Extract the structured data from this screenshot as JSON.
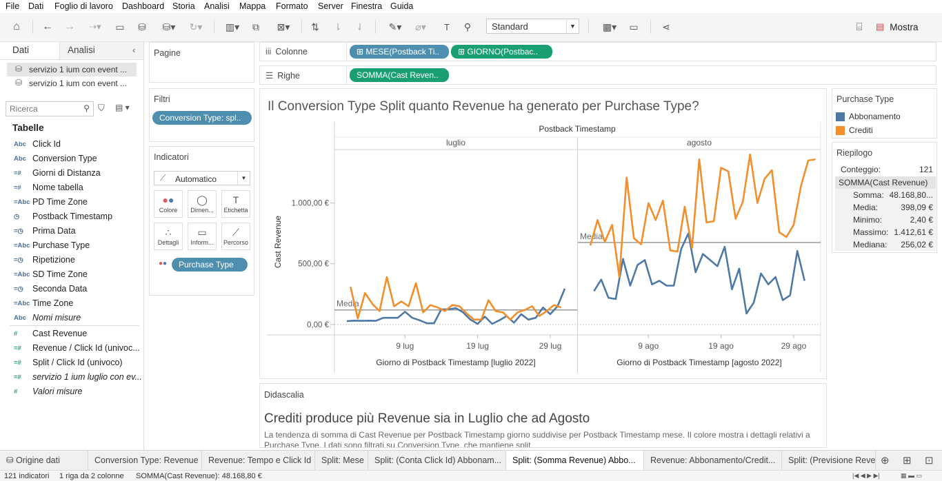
{
  "menu": [
    "File",
    "Dati",
    "Foglio di lavoro",
    "Dashboard",
    "Storia",
    "Analisi",
    "Mappa",
    "Formato",
    "Server",
    "Finestra",
    "Guida"
  ],
  "toolbar": {
    "fit_select": "Standard",
    "show_label": "Mostra"
  },
  "left_pane": {
    "tabs": [
      "Dati",
      "Analisi"
    ],
    "sources": [
      "servizio 1 ium con event ...",
      "servizio 1 ium con event ..."
    ],
    "search_placeholder": "Ricerca",
    "tables_header": "Tabelle",
    "fields": [
      {
        "type": "Abc",
        "name": "Click Id",
        "italic": false,
        "measure": false
      },
      {
        "type": "Abc",
        "name": "Conversion Type",
        "italic": false,
        "measure": false
      },
      {
        "type": "=#",
        "name": "Giorni di Distanza",
        "italic": false,
        "measure": false
      },
      {
        "type": "=#",
        "name": "Nome tabella",
        "italic": false,
        "measure": false
      },
      {
        "type": "=Abc",
        "name": "PD Time Zone",
        "italic": false,
        "measure": false
      },
      {
        "type": "◷",
        "name": "Postback Timestamp",
        "italic": false,
        "measure": false
      },
      {
        "type": "=◷",
        "name": "Prima Data",
        "italic": false,
        "measure": false
      },
      {
        "type": "=Abc",
        "name": "Purchase Type",
        "italic": false,
        "measure": false
      },
      {
        "type": "=◷",
        "name": "Ripetizione",
        "italic": false,
        "measure": false
      },
      {
        "type": "=Abc",
        "name": "SD Time Zone",
        "italic": false,
        "measure": false
      },
      {
        "type": "=◷",
        "name": "Seconda Data",
        "italic": false,
        "measure": false
      },
      {
        "type": "=Abc",
        "name": "Time Zone",
        "italic": false,
        "measure": false
      },
      {
        "type": "Abc",
        "name": "Nomi misure",
        "italic": true,
        "measure": false
      },
      {
        "type": "#",
        "name": "Cast Revenue",
        "italic": false,
        "measure": true
      },
      {
        "type": "=#",
        "name": "Revenue / Click Id (univoc...",
        "italic": false,
        "measure": true
      },
      {
        "type": "=#",
        "name": "Split / Click Id (univoco)",
        "italic": false,
        "measure": true
      },
      {
        "type": "=#",
        "name": "servizio 1 ium luglio con ev...",
        "italic": true,
        "measure": true
      },
      {
        "type": "#",
        "name": "Valori misure",
        "italic": true,
        "measure": true
      }
    ]
  },
  "cards": {
    "pages_title": "Pagine",
    "filters_title": "Filtri",
    "filter_pill": "Conversion Type: spl..",
    "marks_title": "Indicatori",
    "marks_type": "Automatico",
    "mark_buttons": [
      "Colore",
      "Dimen...",
      "Etichetta",
      "Dettagli",
      "Inform...",
      "Percorso"
    ],
    "color_pill": "Purchase Type"
  },
  "shelves": {
    "columns_label": "Colonne",
    "columns_pills": [
      "MESE(Postback Ti..",
      "GIORNO(Postbac.."
    ],
    "rows_label": "Righe",
    "rows_pills": [
      "SOMMA(Cast Reven.."
    ]
  },
  "viz_title": "Il Conversion Type Split quanto Revenue ha generato per Purchase Type?",
  "legend": {
    "title": "Purchase Type",
    "items": [
      {
        "name": "Abbonamento",
        "color": "#4e79a7"
      },
      {
        "name": "Crediti",
        "color": "#f28e2b"
      }
    ]
  },
  "summary": {
    "title": "Riepilogo",
    "count_label": "Conteggio:",
    "count_value": "121",
    "measure": "SOMMA(Cast Revenue)",
    "rows": [
      {
        "k": "Somma:",
        "v": "48.168,80..."
      },
      {
        "k": "Media:",
        "v": "398,09 €"
      },
      {
        "k": "Minimo:",
        "v": "2,40 €"
      },
      {
        "k": "Massimo:",
        "v": "1.412,61 €"
      },
      {
        "k": "Mediana:",
        "v": "256,02 €"
      }
    ]
  },
  "caption": {
    "label": "Didascalia",
    "title": "Crediti produce più Revenue sia in Luglio che ad Agosto",
    "text": "La tendenza di somma di Cast Revenue per Postback Timestamp giorno suddivise per Postback Timestamp mese. Il colore mostra i dettagli relativi a Purchase Type. I dati sono filtrati su Conversion Type, che mantiene split."
  },
  "sheet_tabs": [
    "Origine dati",
    "Conversion Type: Revenue",
    "Revenue: Tempo e Click Id",
    "Split: Mese",
    "Split: (Conta Click Id) Abbonam...",
    "Split: (Somma Revenue) Abbo...",
    "Revenue: Abbonamento/Credit...",
    "Split: (Previsione Rever"
  ],
  "active_tab": 5,
  "status": {
    "marks": "121 indicatori",
    "rows": "1 riga da 2 colonne",
    "sum": "SOMMA(Cast Revenue): 48.168,80 €"
  },
  "chart_data": {
    "type": "line",
    "top_header": "Postback Timestamp",
    "panels": [
      {
        "header": "luglio",
        "xlabel": "Giorno di Postback Timestamp [luglio 2022]",
        "ticks": [
          "9 lug",
          "19 lug",
          "29 lug"
        ],
        "tick_days": [
          9,
          19,
          29
        ],
        "days": 31,
        "avg_label": "Media",
        "avg": 120
      },
      {
        "header": "agosto",
        "xlabel": "Giorno di Postback Timestamp [agosto 2022]",
        "ticks": [
          "9 ago",
          "19 ago",
          "29 ago"
        ],
        "tick_days": [
          9,
          19,
          29
        ],
        "days": 31,
        "avg_label": "Media",
        "avg": 675
      }
    ],
    "ylabel": "Cast Revenue",
    "yticks": [
      {
        "v": 0,
        "label": "0,00 €"
      },
      {
        "v": 500,
        "label": "500,00 €"
      },
      {
        "v": 1000,
        "label": "1.000,00 €"
      }
    ],
    "ylim": [
      -80,
      1440
    ],
    "series": [
      {
        "name": "Abbonamento",
        "color": "#4e79a7",
        "jul": [
          28,
          32,
          30,
          32,
          30,
          55,
          55,
          55,
          105,
          55,
          35,
          10,
          10,
          125,
          125,
          135,
          100,
          40,
          5,
          65,
          5,
          35,
          70,
          15,
          85,
          40,
          55,
          140,
          85,
          150,
          295
        ],
        "aug": [
          275,
          370,
          220,
          210,
          540,
          320,
          490,
          530,
          330,
          360,
          320,
          320,
          620,
          750,
          430,
          580,
          530,
          480,
          640,
          290,
          460,
          90,
          180,
          420,
          330,
          390,
          200,
          240,
          605,
          360
        ]
      },
      {
        "name": "Crediti",
        "color": "#f28e2b",
        "jul": [
          310,
          50,
          260,
          170,
          110,
          390,
          150,
          190,
          150,
          340,
          100,
          160,
          140,
          110,
          160,
          150,
          90,
          40,
          40,
          200,
          110,
          100,
          40,
          100,
          120,
          150,
          70,
          110,
          160,
          140
        ],
        "aug": [
          650,
          860,
          680,
          820,
          390,
          1210,
          710,
          660,
          1000,
          860,
          1020,
          610,
          600,
          970,
          630,
          1360,
          840,
          850,
          1290,
          1260,
          870,
          1010,
          1400,
          1000,
          1200,
          1270,
          760,
          720,
          820,
          1140,
          1350,
          1360
        ]
      }
    ]
  }
}
